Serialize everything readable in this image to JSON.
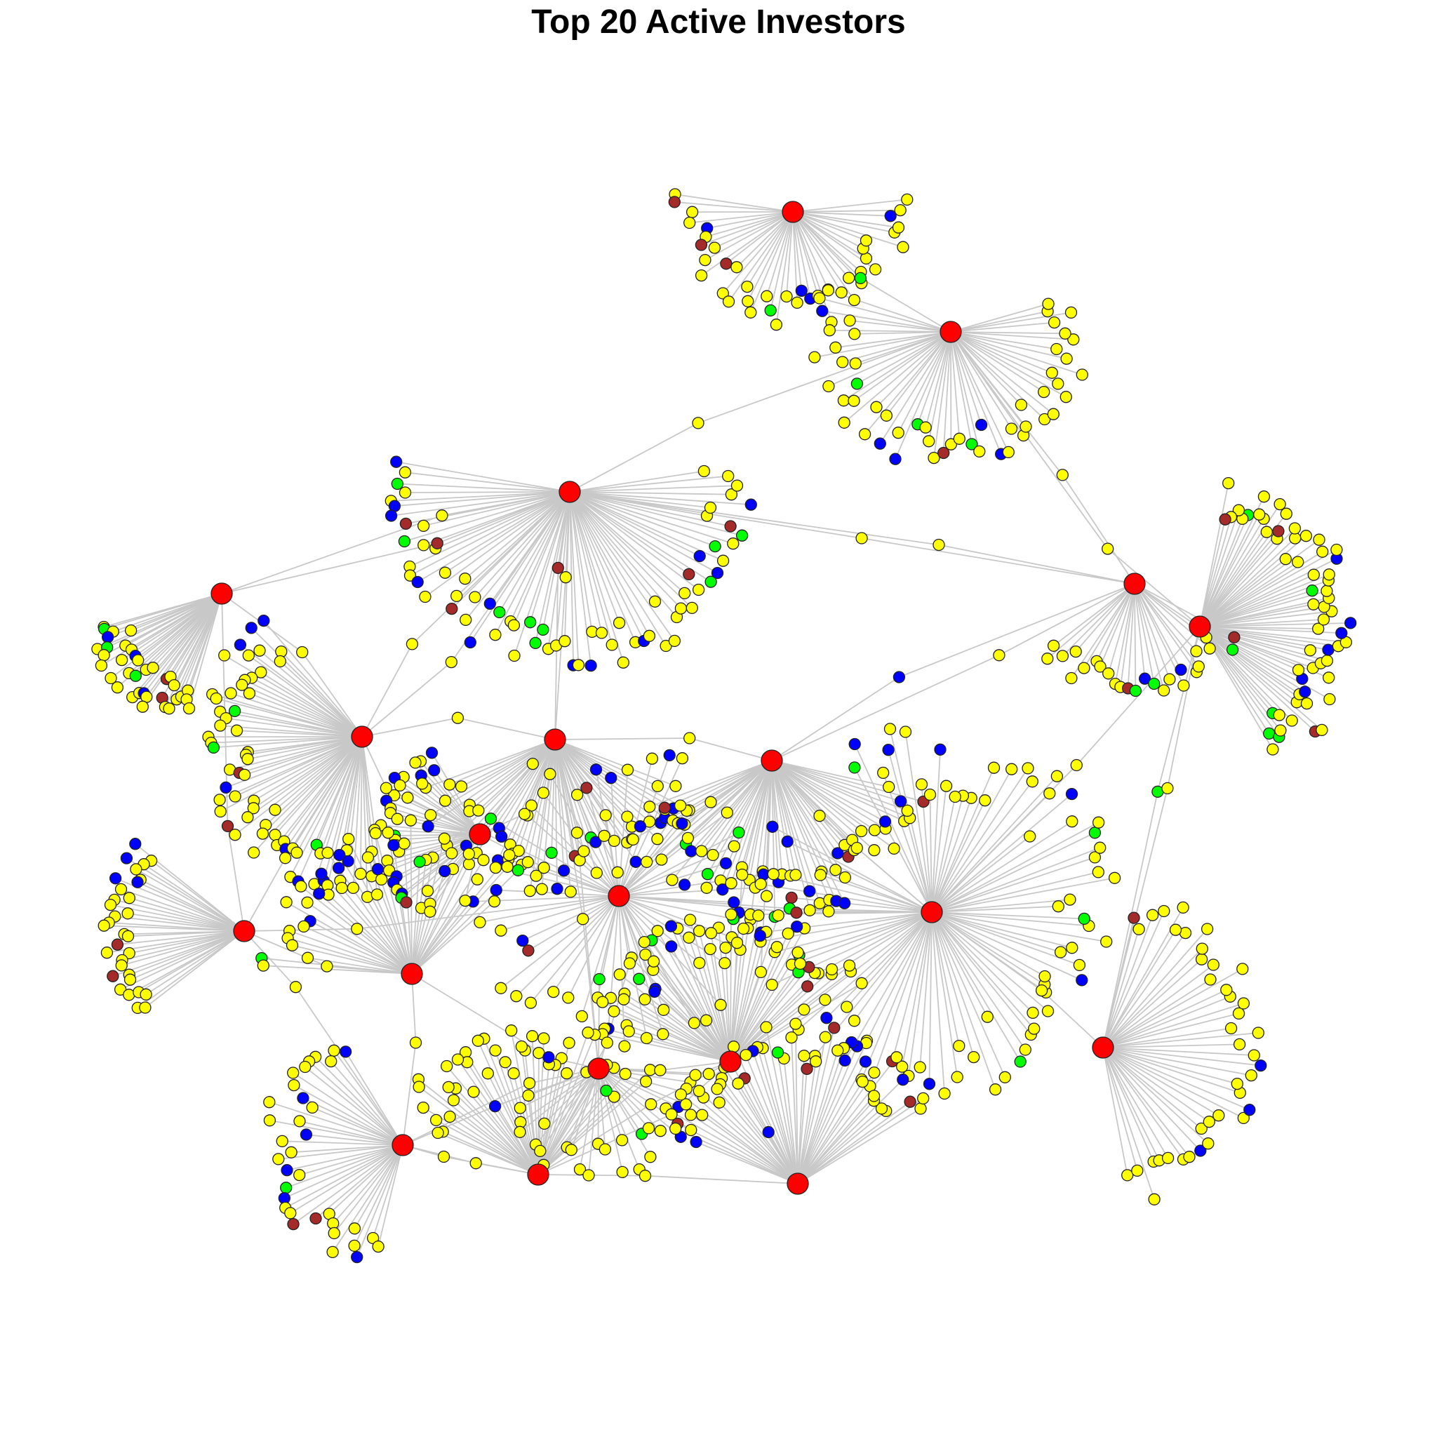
{
  "title": "Top 20 Active Investors",
  "colors": {
    "hub": "#FF0000",
    "yellow": "#FFFF00",
    "blue": "#0000FF",
    "green": "#00FF00",
    "brown": "#A52A2A",
    "edge": "#C8C8C8"
  }
}
